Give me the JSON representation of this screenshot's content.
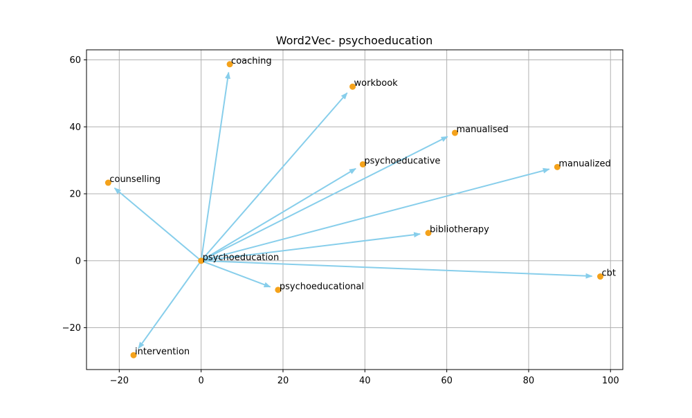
{
  "chart_data": {
    "type": "scatter",
    "title": "Word2Vec- psychoeducation",
    "xlabel": "",
    "ylabel": "",
    "xlim": [
      -28,
      103
    ],
    "ylim": [
      -32.5,
      63
    ],
    "xticks": [
      -20,
      0,
      20,
      40,
      60,
      80,
      100
    ],
    "yticks": [
      -20,
      0,
      20,
      40,
      60
    ],
    "xtick_labels": [
      "−20",
      "0",
      "20",
      "40",
      "60",
      "80",
      "100"
    ],
    "ytick_labels": [
      "−20",
      "0",
      "20",
      "40",
      "60"
    ],
    "grid": true,
    "origin": {
      "label": "psychoeducation",
      "x": 0,
      "y": 0
    },
    "points": [
      {
        "label": "coaching",
        "x": 7,
        "y": 58.7
      },
      {
        "label": "workbook",
        "x": 37,
        "y": 52
      },
      {
        "label": "manualised",
        "x": 62,
        "y": 38.2
      },
      {
        "label": "psychoeducative",
        "x": 39.5,
        "y": 28.8
      },
      {
        "label": "manualized",
        "x": 87,
        "y": 28
      },
      {
        "label": "counselling",
        "x": -22.7,
        "y": 23.3
      },
      {
        "label": "bibliotherapy",
        "x": 55.5,
        "y": 8.3
      },
      {
        "label": "psychoeducational",
        "x": 18.8,
        "y": -8.7
      },
      {
        "label": "cbt",
        "x": 97.5,
        "y": -4.7
      },
      {
        "label": "intervention",
        "x": -16.5,
        "y": -28.2
      }
    ],
    "colors": {
      "point": "#f4a21b",
      "arrow": "#87ceeb",
      "grid": "#b0b0b0",
      "axis": "#000000"
    }
  }
}
